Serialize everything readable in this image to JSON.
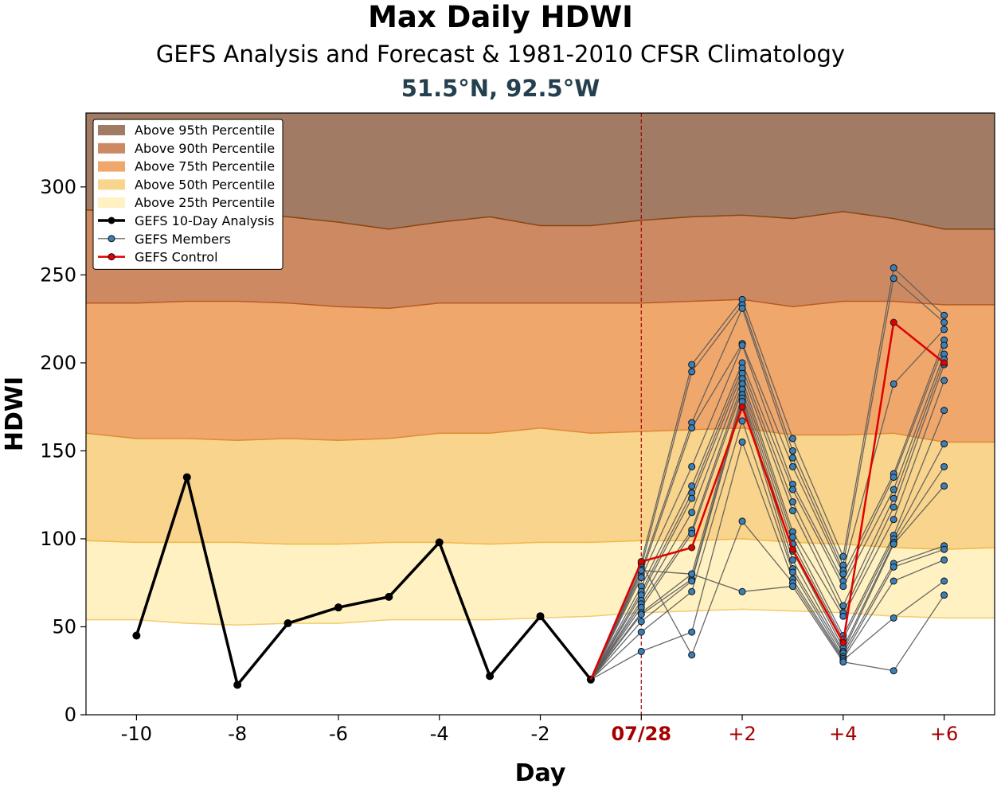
{
  "chart_data": {
    "type": "line",
    "title": "Max Daily HDWI",
    "subtitle": "GEFS Analysis and Forecast & 1981-2010 CFSR Climatology",
    "location": "51.5°N, 92.5°W",
    "xlabel": "Day",
    "ylabel": "HDWI",
    "xlim": [
      -11,
      7
    ],
    "ylim": [
      0,
      342
    ],
    "yticks": [
      0,
      50,
      100,
      150,
      200,
      250,
      300
    ],
    "xticks": [
      {
        "x": -10,
        "label": "-10"
      },
      {
        "x": -8,
        "label": "-8"
      },
      {
        "x": -6,
        "label": "-6"
      },
      {
        "x": -4,
        "label": "-4"
      },
      {
        "x": -2,
        "label": "-2"
      },
      {
        "x": 0,
        "label": "07/28"
      },
      {
        "x": 2,
        "label": "+2"
      },
      {
        "x": 4,
        "label": "+4"
      },
      {
        "x": 6,
        "label": "+6"
      }
    ],
    "forecast_start": 0,
    "climatology": {
      "x": [
        -11,
        -10,
        -9,
        -8,
        -7,
        -6,
        -5,
        -4,
        -3,
        -2,
        -1,
        0,
        1,
        2,
        3,
        4,
        5,
        6,
        7
      ],
      "p25": [
        54,
        54,
        52,
        51,
        52,
        52,
        54,
        54,
        54,
        55,
        56,
        58,
        59,
        60,
        59,
        58,
        56,
        55,
        55
      ],
      "p50": [
        99,
        98,
        98,
        98,
        97,
        97,
        98,
        98,
        97,
        98,
        98,
        99,
        99,
        100,
        98,
        97,
        95,
        94,
        95
      ],
      "p75": [
        160,
        157,
        157,
        156,
        157,
        156,
        157,
        160,
        160,
        163,
        160,
        161,
        162,
        163,
        159,
        159,
        160,
        155,
        155
      ],
      "p90": [
        234,
        234,
        235,
        235,
        234,
        232,
        231,
        234,
        234,
        234,
        234,
        234,
        235,
        236,
        232,
        235,
        235,
        233,
        233
      ],
      "p95": [
        287,
        285,
        285,
        285,
        283,
        280,
        276,
        280,
        283,
        278,
        278,
        281,
        283,
        284,
        282,
        286,
        282,
        276,
        276
      ]
    },
    "analysis": {
      "x": [
        -10,
        -9,
        -8,
        -7,
        -6,
        -5,
        -4,
        -3,
        -2,
        -1
      ],
      "y": [
        45,
        135,
        17,
        52,
        61,
        67,
        98,
        22,
        56,
        20
      ]
    },
    "control": {
      "x": [
        -1,
        0,
        1,
        2,
        3,
        4,
        5,
        6
      ],
      "y": [
        20,
        87,
        95,
        175,
        94,
        41,
        223,
        200
      ]
    },
    "members": [
      [
        20,
        87,
        199,
        236,
        157,
        90,
        254,
        227
      ],
      [
        20,
        84,
        195,
        233,
        150,
        85,
        248,
        223
      ],
      [
        20,
        82,
        166,
        231,
        146,
        82,
        188,
        219
      ],
      [
        20,
        80,
        163,
        211,
        141,
        80,
        137,
        213
      ],
      [
        20,
        78,
        141,
        210,
        131,
        76,
        135,
        210
      ],
      [
        20,
        73,
        130,
        200,
        128,
        73,
        128,
        205
      ],
      [
        20,
        70,
        126,
        197,
        121,
        62,
        123,
        202
      ],
      [
        20,
        68,
        123,
        194,
        116,
        58,
        118,
        199
      ],
      [
        20,
        65,
        115,
        191,
        104,
        56,
        111,
        190
      ],
      [
        20,
        63,
        105,
        188,
        101,
        45,
        102,
        173
      ],
      [
        20,
        61,
        103,
        185,
        97,
        43,
        100,
        154
      ],
      [
        20,
        58,
        80,
        182,
        93,
        38,
        98,
        141
      ],
      [
        20,
        57,
        77,
        180,
        88,
        36,
        97,
        130
      ],
      [
        20,
        53,
        76,
        178,
        83,
        35,
        86,
        96
      ],
      [
        20,
        47,
        70,
        167,
        81,
        33,
        84,
        94
      ],
      [
        20,
        36,
        47,
        155,
        77,
        32,
        76,
        88
      ],
      [
        20,
        86,
        34,
        110,
        75,
        31,
        55,
        76
      ],
      [
        20,
        82,
        80,
        70,
        73,
        30,
        25,
        68
      ]
    ],
    "legend": {
      "placement": "upper-left",
      "entries": [
        {
          "label": "Above 95th Percentile",
          "kind": "patch",
          "color": "#a17b63"
        },
        {
          "label": "Above 90th Percentile",
          "kind": "patch",
          "color": "#cd8a62"
        },
        {
          "label": "Above 75th Percentile",
          "kind": "patch",
          "color": "#efa76b"
        },
        {
          "label": "Above 50th Percentile",
          "kind": "patch",
          "color": "#f9d48c"
        },
        {
          "label": "Above 25th Percentile",
          "kind": "patch",
          "color": "#fff1c1"
        },
        {
          "label": "GEFS 10-Day Analysis",
          "kind": "line",
          "color": "#000000"
        },
        {
          "label": "GEFS Members",
          "kind": "line",
          "color": "#555555",
          "marker": "#3a7fb8"
        },
        {
          "label": "GEFS Control",
          "kind": "line",
          "color": "#e00000",
          "marker": "#e00000"
        }
      ]
    },
    "colors": {
      "p95_band": "#a17b63",
      "p90_band": "#cd8a62",
      "p75_band": "#efa76b",
      "p50_band": "#f9d48c",
      "p25_band": "#fff1c1",
      "p95_edge": "#8b4513",
      "p90_edge": "#b85a22",
      "p75_edge": "#e08a33",
      "p50_edge": "#f0b84a",
      "p25_edge": "#f2cc6e",
      "forecast_tick": "#a50000",
      "location_text": "#24404e",
      "member_line": "#5a5a5a",
      "member_marker": "#3a7fb8",
      "control_line": "#e00000",
      "analysis_line": "#000000"
    }
  }
}
